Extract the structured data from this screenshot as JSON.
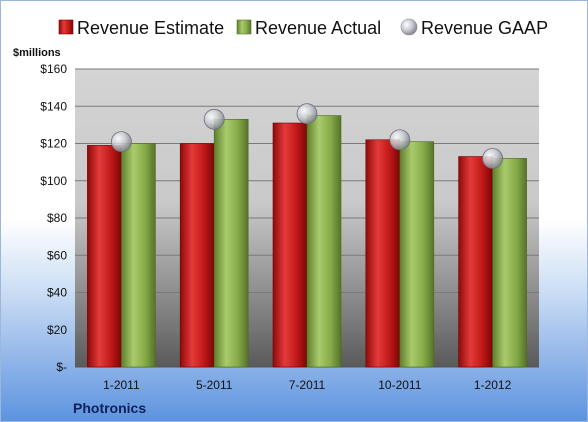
{
  "chart_data": {
    "type": "bar",
    "categories": [
      "1-2011",
      "5-2011",
      "7-2011",
      "10-2011",
      "1-2012"
    ],
    "series": [
      {
        "name": "Revenue Estimate",
        "kind": "bar",
        "values": [
          119,
          120,
          131,
          122,
          113
        ],
        "color": "#d42020"
      },
      {
        "name": "Revenue Actual",
        "kind": "bar",
        "values": [
          120,
          133,
          135,
          121,
          112
        ],
        "color": "#8ab34a"
      },
      {
        "name": "Revenue GAAP",
        "kind": "marker",
        "values": [
          121,
          133,
          136,
          122,
          112
        ],
        "color": "#b9bcc2"
      }
    ],
    "ylabel": "$millions",
    "ylim": [
      0,
      160
    ],
    "yticks": [
      0,
      20,
      40,
      60,
      80,
      100,
      120,
      140,
      160
    ],
    "ytick_labels": [
      "$-",
      "$20",
      "$40",
      "$60",
      "$80",
      "$100",
      "$120",
      "$140",
      "$160"
    ],
    "grid": true,
    "legend": "top",
    "footer": "Photronics"
  }
}
